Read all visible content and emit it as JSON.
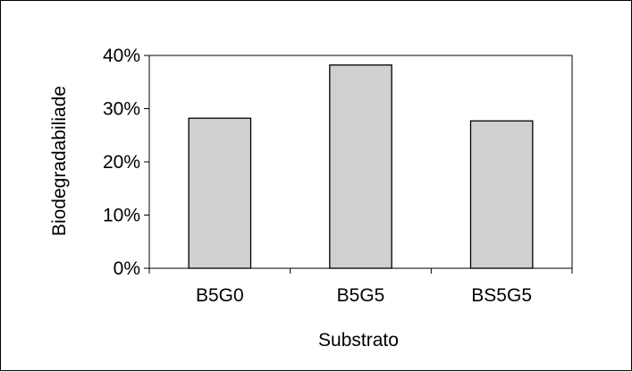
{
  "chart_data": {
    "type": "bar",
    "title": "",
    "xlabel": "Substrato",
    "ylabel": "Biodegradabiliade",
    "categories": [
      "B5G0",
      "B5G5",
      "BS5G5"
    ],
    "values": [
      28.2,
      38.2,
      27.7
    ],
    "unit": "%",
    "ylim": [
      0,
      40
    ],
    "yticks": [
      0,
      10,
      20,
      30,
      40
    ],
    "ytick_labels": [
      "0%",
      "10%",
      "20%",
      "30%",
      "40%"
    ],
    "grid": false,
    "legend": "none",
    "bar_color": "#d0d0d0",
    "bar_edge_color": "#000000"
  }
}
